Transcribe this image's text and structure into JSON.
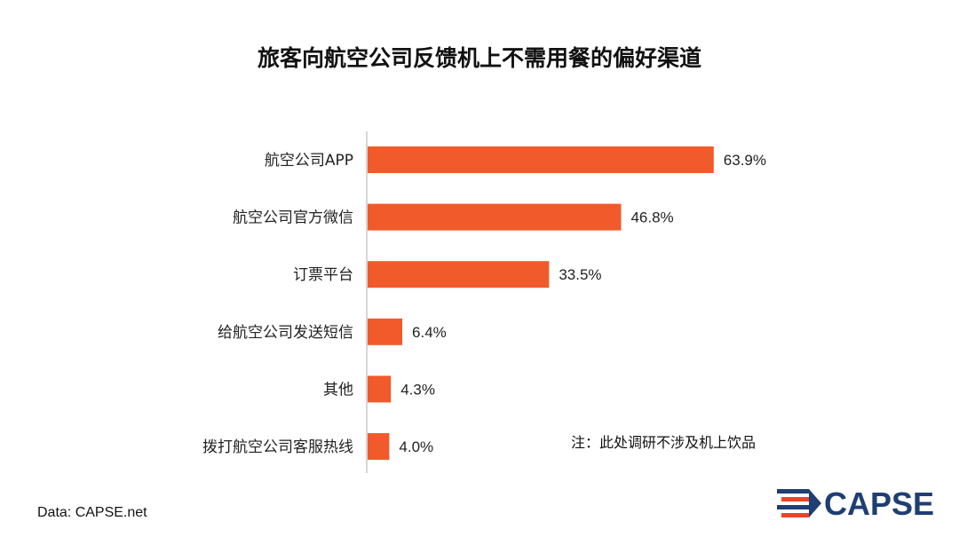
{
  "colors": {
    "bar": "#f15a2b",
    "axis": "#c8c8c8",
    "logo_blue": "#1f3e73",
    "logo_red": "#e8452c"
  },
  "chart_data": {
    "type": "bar",
    "orientation": "horizontal",
    "title": "旅客向航空公司反馈机上不需用餐的偏好渠道",
    "categories": [
      "航空公司APP",
      "航空公司官方微信",
      "订票平台",
      "给航空公司发送短信",
      "其他",
      "拨打航空公司客服热线"
    ],
    "values": [
      63.9,
      46.8,
      33.5,
      6.4,
      4.3,
      4.0
    ],
    "value_labels": [
      "63.9%",
      "46.8%",
      "33.5%",
      "6.4%",
      "4.3%",
      "4.0%"
    ],
    "xlim": [
      0,
      100
    ],
    "grid": false,
    "note": "注：此处调研不涉及机上饮品",
    "source": "Data: CAPSE.net"
  },
  "logo": {
    "text": "CAPSE",
    "icon": "capse-logo-icon"
  }
}
